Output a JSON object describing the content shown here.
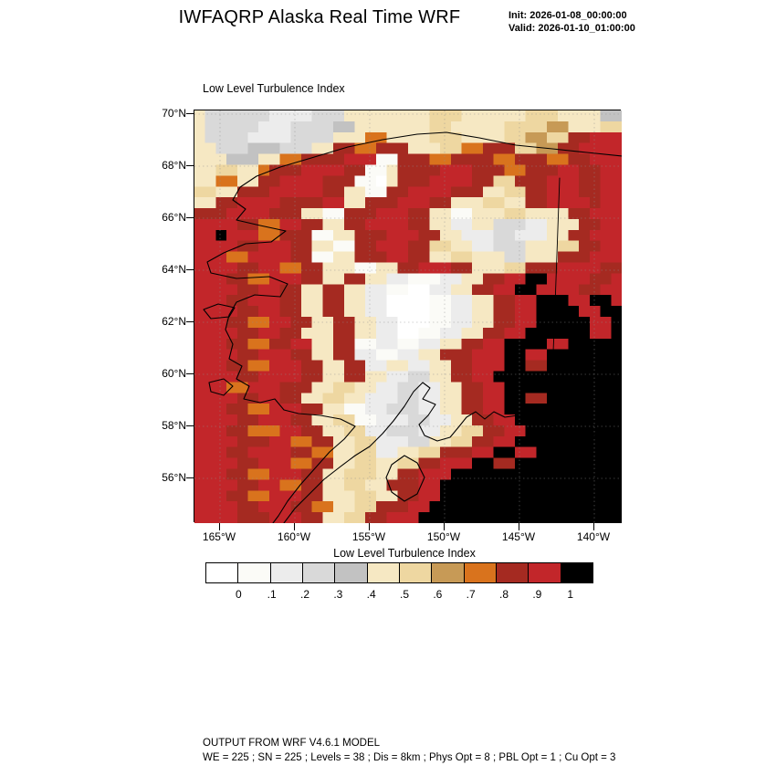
{
  "header": {
    "title": "IWFAQRP Alaska Real Time WRF",
    "init": "Init: 2026-01-08_00:00:00",
    "valid": "Valid: 2026-01-10_01:00:00"
  },
  "plot": {
    "label": "Low Level Turbulence Index"
  },
  "footer": {
    "line1": "OUTPUT FROM WRF V4.6.1 MODEL",
    "line2": "WE = 225 ; SN = 225 ; Levels = 38 ; Dis = 8km ; Phys Opt = 8 ; PBL Opt = 1 ; Cu Opt = 3"
  },
  "chart_data": {
    "type": "heatmap",
    "title": "Low Level Turbulence Index",
    "x_axis": {
      "tick_labels": [
        "165°W",
        "160°W",
        "155°W",
        "150°W",
        "145°W",
        "140°W"
      ]
    },
    "y_axis": {
      "tick_labels": [
        "70°N",
        "68°N",
        "66°N",
        "64°N",
        "62°N",
        "60°N",
        "58°N",
        "56°N"
      ]
    },
    "colorbar": {
      "title": "Low Level Turbulence Index",
      "tick_labels": [
        "0",
        ".1",
        ".2",
        ".3",
        ".4",
        ".5",
        ".6",
        ".7",
        ".8",
        ".9",
        "1"
      ],
      "levels": [
        0,
        0.1,
        0.2,
        0.3,
        0.4,
        0.5,
        0.6,
        0.7,
        0.8,
        0.9,
        1.0
      ],
      "colors": [
        "#ffffff",
        "#fbfbf7",
        "#ececec",
        "#d9d9d9",
        "#c2c2c2",
        "#f6e8c3",
        "#eed7a1",
        "#c79a56",
        "#d9731d",
        "#a52a21",
        "#c2262a",
        "#000000"
      ]
    },
    "grid": {
      "ncols": 40,
      "nrows": 38,
      "encoding": "run-length rows, tokens LEVELxCOUNT; levels 0-9,A(=10),B(=11) index into colorbar.colors (estimated field)",
      "rows": [
        "5x1,3x6,2x4,3x3,5x8,6x3,5x6,6x3,5x4,4x2",
        "5x1,3x5,2x3,3x4,4x2,5x7,6x2,5x5,6x4,7x2,5x3,6x2",
        "5x1,3x4,2x4,3x4,5x3,8x2,5x4,6x3,5x4,6x2,7x2,6x2,9x2,Ax3",
        "5x2,3x3,4x3,3x3,5x2,9x2,8x2,9x3,5x3,6x2,8x2,9x3,6x2,7x2,9x2,Ax4",
        "5x3,4x3,5x2,8x2,9x4,Ax3,1x2,9x3,8x2,9x4,8x2,9x3,8x2,9x2,Ax3",
        "5x2,6x2,5x2,8x1,9x3,Ax4,9x2,1x2,5x1,9x4,Ax3,9x3,8x2,9x3,Ax2,9x2,Ax2",
        "5x2,8x2,5x2,9x2,Ax4,9x3,1x2,0x1,5x1,9x3,Ax4,9x2,6x2,9x3,Ax3,9x2,Ax2",
        "6x2,5x2,9x3,Ax5,9x2,5x2,1x2,9x2,Ax4,9x3,5x2,6x2,9x2,Ax3,9x2,Ax2",
        "5x2,9x2,Ax4,9x4,Ax2,5x2,9x3,Ax3,9x2,5x3,6x2,5x2,9x2,Ax4,9x1,Ax2",
        "9x3,Ax4,9x3,5x2,1x2,9x3,Ax3,9x2,5x2,1x2,5x3,6x2,5x4,9x2,Ax3",
        "Ax4,9x2,8x2,Ax2,9x2,5x2,9x2,Ax4,9x2,5x2,2x2,5x2,3x3,2x2,5x3,9x2,Ax2",
        "Ax2,Bx1,Ax3,8x2,9x3,1x2,5x2,9x3,Ax3,9x2,5x2,2x3,3x2,2x3,5x2,9x2,Ax3",
        "Ax4,9x2,Ax3,9x2,5x2,1x2,9x2,Ax3,9x2,6x2,5x2,2x2,3x3,5x3,6x2,9x2,Ax2",
        "Ax3,8x2,Ax4,9x2,1x2,5x2,9x3,Ax2,9x2,5x2,6x2,5x3,3x2,5x3,9x3,Ax3",
        "Ax4,9x2,Ax2,8x2,9x2,5x3,1x2,5x2,9x2,Ax3,9x2,5x3,6x2,9x3,Ax4,9x2",
        "Ax3,9x2,8x2,Ax3,9x2,5x2,9x2,5x2,2x2,1x3,2x2,5x2,9x2,Ax2,Bx2,Ax4,9x2,Ax1",
        "Ax4,9x2,Ax2,9x2,5x2,9x2,5x2,2x2,1x2,0x2,2x2,5x2,9x2,Ax2,Bx2,Ax4,9x2,Ax2",
        "Ax3,9x2,Ax3,9x2,5x2,9x2,5x2,2x2,0x4,1x2,2x2,5x2,9x2,Ax2,Bx3,Ax2,Bx2,Ax1",
        "Ax4,9x2,Ax2,9x2,5x2,9x2,5x2,2x2,0x4,1x2,2x2,5x2,9x2,Ax2,Bx4,Ax2,Bx2",
        "Ax3,9x2,8x2,Ax2,9x2,5x2,9x2,5x2,2x2,0x3,1x2,2x2,5x2,9x2,Ax2,Bx5,Ax2,Bx1",
        "Ax4,9x2,Ax2,9x2,5x3,9x2,5x2,2x2,0x2,1x2,2x2,5x2,9x2,Ax2,Bx6,Ax2,Bx1",
        "Ax3,9x2,8x2,9x2,Ax2,5x2,9x2,1x2,2x2,1x2,2x2,5x2,9x2,Ax2,Bx4,Ax2,Bx5",
        "Ax4,9x2,Ax3,9x2,5x2,9x2,2x2,1x2,2x2,5x2,9x3,Ax3,Bx2,Ax2,Bx7",
        "Ax3,9x2,8x2,Ax3,9x2,5x2,9x2,2x2,5x2,2x2,5x2,9x2,Ax3,Bx2,9x2,Bx7",
        "Ax4,9x2,Ax4,9x2,5x2,9x2,5x2,2x2,3x2,5x2,9x2,Ax2,Bx12",
        "Ax3,8x2,Ax3,9x3,5x2,6x2,5x2,2x2,3x2,2x2,5x2,9x2,Ax2,Bx11",
        "Ax4,9x2,Ax2,9x2,5x2,6x2,5x2,2x3,3x2,2x2,5x2,9x2,Ax2,Bx2,9x2,Bx7",
        "Ax3,9x2,8x2,Ax3,9x2,5x2,1x2,2x2,3x3,2x2,5x2,9x2,Ax2,Bx11",
        "Ax4,9x2,Ax3,9x2,5x2,6x2,1x2,2x3,3x2,2x2,5x2,9x2,Ax2,Bx10",
        "Ax3,9x2,8x3,Ax2,9x2,5x2,6x2,2x2,3x3,2x2,5x2,6x2,9x2,Ax2,Bx9",
        "Ax4,9x3,Ax2,8x2,9x2,5x2,6x2,2x3,3x2,5x2,6x2,9x2,Ax2,Bx10",
        "Ax3,9x2,Ax4,9x2,8x2,5x2,6x2,2x2,5x2,6x2,9x3,Ax2,Bx2,Ax2,Bx8",
        "Ax4,9x2,Ax3,8x2,9x2,5x2,6x2,5x2,6x2,9x2,Ax3,Bx2,9x2,Bx10",
        "Ax3,9x2,8x2,Ax3,9x2,5x2,6x3,5x2,9x2,Ax3,Bx16",
        "Ax4,9x2,Ax2,8x2,9x2,5x2,6x2,5x2,9x3,Ax2,Bx17",
        "Ax3,9x2,8x2,Ax3,9x2,5x3,6x2,5x2,9x2,Ax2,Bx17",
        "Ax4,9x2,Ax3,9x2,8x2,5x2,6x2,9x3,Ax2,Bx18",
        "Ax4,9x3,Ax3,9x2,5x2,6x2,9x2,Ax3,Bx19"
      ]
    }
  }
}
